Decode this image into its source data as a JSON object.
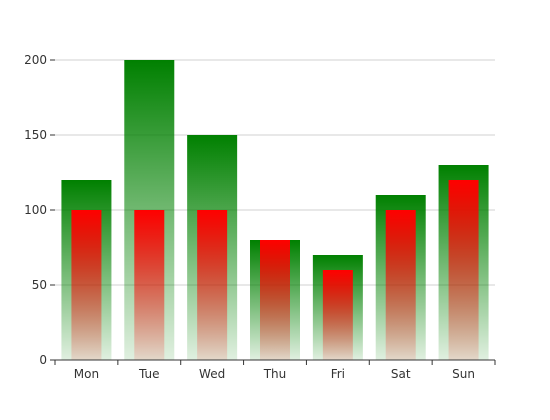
{
  "chart_data": {
    "type": "bar",
    "categories": [
      "Mon",
      "Tue",
      "Wed",
      "Thu",
      "Fri",
      "Sat",
      "Sun"
    ],
    "series": [
      {
        "values": [
          120,
          200,
          150,
          80,
          70,
          110,
          130
        ],
        "color": "#008000"
      },
      {
        "values": [
          100,
          100,
          100,
          80,
          60,
          100,
          120
        ],
        "color": "#ff0000"
      }
    ],
    "ylim": [
      0,
      200
    ],
    "yticks": [
      0,
      50,
      100,
      150,
      200
    ],
    "grid": true,
    "legend": "none",
    "title": "",
    "xlabel": "",
    "ylabel": ""
  }
}
